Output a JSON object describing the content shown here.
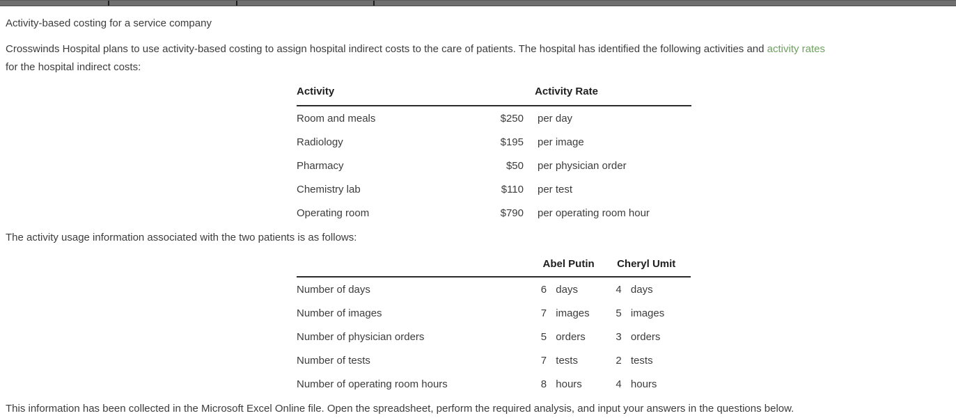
{
  "colors": {
    "glossary_link_green": "#6da25e",
    "body_text": "#3c3c3c",
    "topbar_gray": "#6f6f6f"
  },
  "title": "Activity-based costing for a service company",
  "intro": {
    "before_link": "Crosswinds Hospital plans to use activity-based costing to assign hospital indirect costs to the care of patients. The hospital has identified the following activities and",
    "link": "activity rates",
    "after_link": "for the hospital indirect costs:"
  },
  "rates_table": {
    "headers": {
      "activity": "Activity",
      "rate": "Activity Rate"
    },
    "rows": [
      {
        "activity": "Room and meals",
        "rate": "$250",
        "unit": "per day"
      },
      {
        "activity": "Radiology",
        "rate": "$195",
        "unit": "per image"
      },
      {
        "activity": "Pharmacy",
        "rate": "$50",
        "unit": "per physician order"
      },
      {
        "activity": "Chemistry lab",
        "rate": "$110",
        "unit": "per test"
      },
      {
        "activity": "Operating room",
        "rate": "$790",
        "unit": "per operating room hour"
      }
    ]
  },
  "usage_note": "The activity usage information associated with the two patients is as follows:",
  "usage_table": {
    "headers": {
      "patient1": "Abel Putin",
      "patient2": "Cheryl Umit"
    },
    "rows": [
      {
        "label": "Number of days",
        "p1_qty": "6",
        "p1_unit": "days",
        "p2_qty": "4",
        "p2_unit": "days"
      },
      {
        "label": "Number of images",
        "p1_qty": "7",
        "p1_unit": "images",
        "p2_qty": "5",
        "p2_unit": "images"
      },
      {
        "label": "Number of physician orders",
        "p1_qty": "5",
        "p1_unit": "orders",
        "p2_qty": "3",
        "p2_unit": "orders"
      },
      {
        "label": "Number of tests",
        "p1_qty": "7",
        "p1_unit": "tests",
        "p2_qty": "2",
        "p2_unit": "tests"
      },
      {
        "label": "Number of operating room hours",
        "p1_qty": "8",
        "p1_unit": "hours",
        "p2_qty": "4",
        "p2_unit": "hours"
      }
    ]
  },
  "footer_note": "This information has been collected in the Microsoft Excel Online file. Open the spreadsheet, perform the required analysis, and input your answers in the questions below."
}
